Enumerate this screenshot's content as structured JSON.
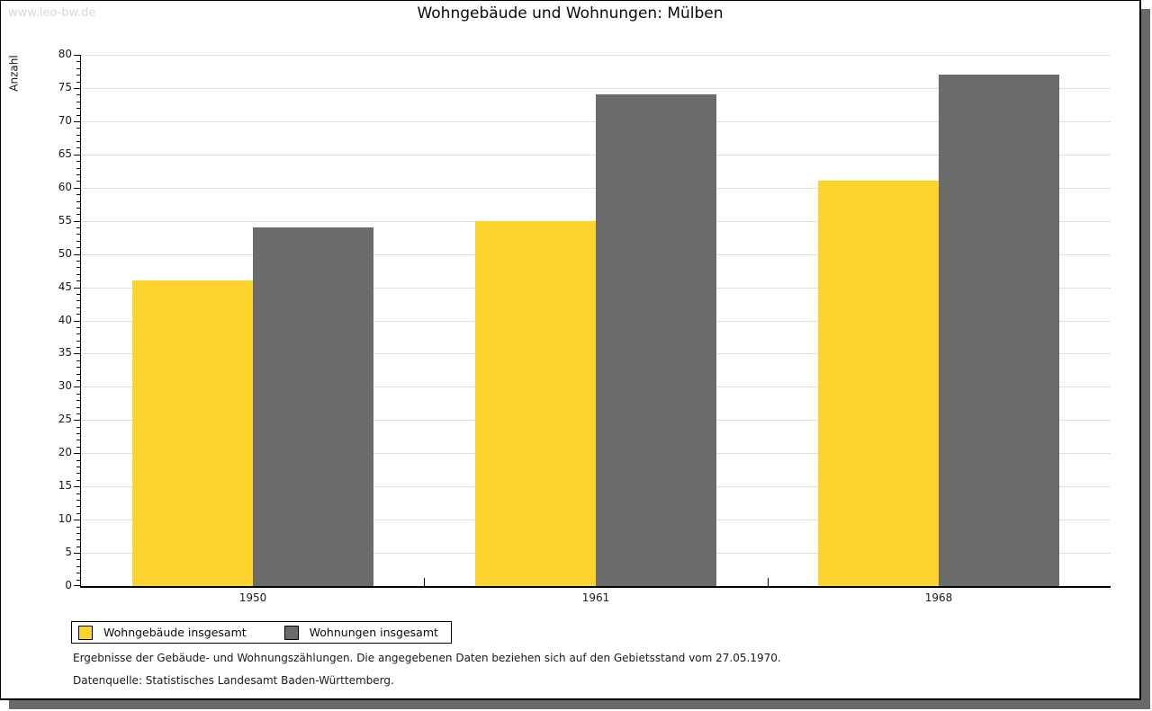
{
  "watermark": "www.leo-bw.de",
  "title": "Wohngebäude und Wohnungen: Mülben",
  "chart_data": {
    "type": "bar",
    "title": "Wohngebäude und Wohnungen: Mülben",
    "categories": [
      "1950",
      "1961",
      "1968"
    ],
    "series": [
      {
        "name": "Wohngebäude insgesamt",
        "color": "#FDD42E",
        "values": [
          46,
          55,
          61
        ]
      },
      {
        "name": "Wohnungen insgesamt",
        "color": "#6B6B6B",
        "values": [
          54,
          74,
          77
        ]
      }
    ],
    "xlabel": "",
    "ylabel": "Anzahl",
    "ylim": [
      0,
      80
    ],
    "y_major_step": 5,
    "y_minor_step": 1,
    "grid": true,
    "gridline_color": "#e0e0e0",
    "legend_position": "bottom-left"
  },
  "legend": {
    "items": [
      {
        "label": "Wohngebäude insgesamt",
        "color": "#FDD42E"
      },
      {
        "label": "Wohnungen insgesamt",
        "color": "#6B6B6B"
      }
    ]
  },
  "footnotes": {
    "line1": "Ergebnisse der Gebäude- und Wohnungszählungen. Die angegebenen Daten beziehen sich auf den Gebietsstand vom 27.05.1970.",
    "line2": "Datenquelle: Statistisches Landesamt Baden-Württemberg."
  }
}
